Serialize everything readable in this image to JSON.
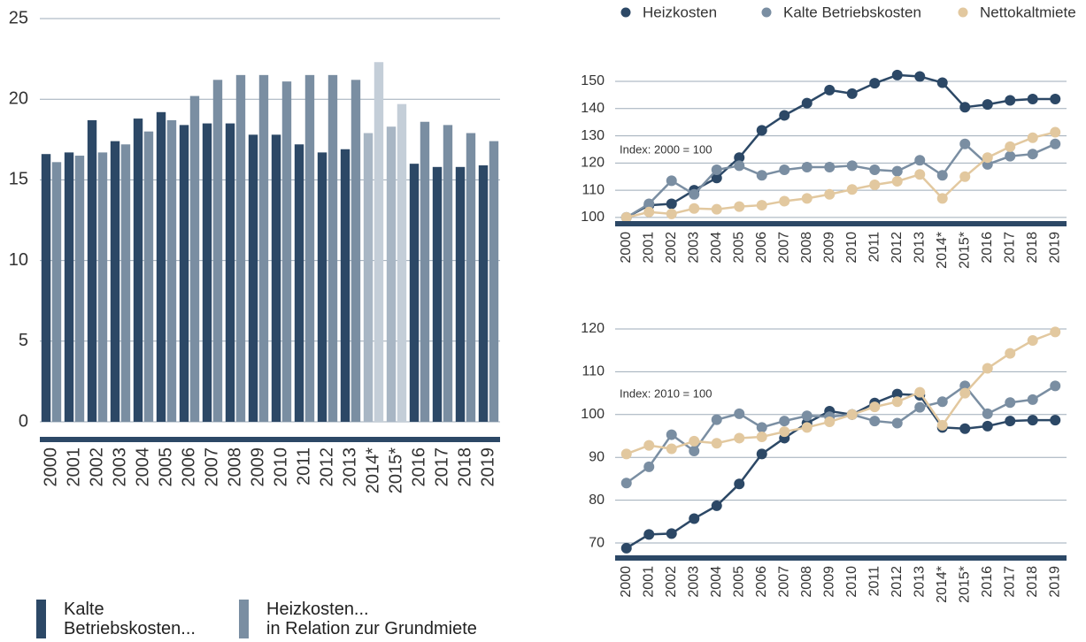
{
  "chart_data": [
    {
      "type": "bar",
      "categories": [
        "2000",
        "2001",
        "2002",
        "2003",
        "2004",
        "2005",
        "2006",
        "2007",
        "2008",
        "2009",
        "2010",
        "2011",
        "2012",
        "2013",
        "2014*",
        "2015*",
        "2016",
        "2017",
        "2018",
        "2019"
      ],
      "series": [
        {
          "name": "Kalte\nBetriebskosten...",
          "color": "#2c4866",
          "colors": [
            "#2c4866",
            "#2c4866",
            "#2c4866",
            "#2c4866",
            "#2c4866",
            "#2c4866",
            "#2c4866",
            "#2c4866",
            "#2c4866",
            "#2c4866",
            "#2c4866",
            "#2c4866",
            "#2c4866",
            "#2c4866",
            "#a8b6c4",
            "#a8b6c4",
            "#2c4866",
            "#2c4866",
            "#2c4866",
            "#2c4866"
          ],
          "values": [
            16.6,
            16.7,
            18.7,
            17.4,
            18.8,
            19.2,
            18.4,
            18.5,
            18.5,
            17.8,
            17.8,
            17.2,
            16.7,
            16.9,
            17.9,
            18.3,
            16.0,
            15.8,
            15.8,
            15.9
          ]
        },
        {
          "name": "Heizkosten...\nin Relation zur Grundmiete",
          "color": "#7a8ea2",
          "colors": [
            "#7a8ea2",
            "#7a8ea2",
            "#7a8ea2",
            "#7a8ea2",
            "#7a8ea2",
            "#7a8ea2",
            "#7a8ea2",
            "#7a8ea2",
            "#7a8ea2",
            "#7a8ea2",
            "#7a8ea2",
            "#7a8ea2",
            "#7a8ea2",
            "#7a8ea2",
            "#c4ced8",
            "#c4ced8",
            "#7a8ea2",
            "#7a8ea2",
            "#7a8ea2",
            "#7a8ea2"
          ],
          "values": [
            16.1,
            16.5,
            16.7,
            17.2,
            18.0,
            18.7,
            20.2,
            21.2,
            21.5,
            21.5,
            21.1,
            21.5,
            21.5,
            21.2,
            22.3,
            19.7,
            18.6,
            18.4,
            17.9,
            17.4
          ]
        }
      ],
      "ylim": [
        0,
        25
      ],
      "yticks": [
        0,
        5,
        10,
        15,
        20,
        25
      ],
      "grid": true
    },
    {
      "type": "line",
      "annotation": "Index: 2000 = 100",
      "categories": [
        "2000",
        "2001",
        "2002",
        "2003",
        "2004",
        "2005",
        "2006",
        "2007",
        "2008",
        "2009",
        "2010",
        "2011",
        "2012",
        "2013",
        "2014*",
        "2015*",
        "2016",
        "2017",
        "2018",
        "2019"
      ],
      "series": [
        {
          "name": "Heizkosten",
          "color": "#2c4866",
          "values": [
            100,
            104.5,
            105,
            110,
            114.5,
            122,
            132,
            137.5,
            142,
            146.8,
            145.5,
            149.3,
            152.3,
            151.8,
            149.5,
            140.5,
            141.5,
            143,
            143.5,
            143.5
          ]
        },
        {
          "name": "Kalte Betriebskosten",
          "color": "#7a8ea2",
          "values": [
            100,
            105,
            113.5,
            108.5,
            117.5,
            119,
            115.5,
            117.5,
            118.5,
            118.5,
            119,
            117.5,
            117,
            121,
            115.5,
            127,
            119.5,
            122.5,
            123.3,
            127
          ]
        },
        {
          "name": "Nettokaltmiete",
          "color": "#e2c89f",
          "values": [
            100,
            102,
            101.3,
            103.3,
            103,
            104,
            104.5,
            106,
            107,
            108.5,
            110.3,
            112,
            113.3,
            115.8,
            107,
            115,
            122,
            126,
            129.3,
            131.3
          ]
        }
      ],
      "ylim": [
        97.7,
        155
      ],
      "yticks": [
        100,
        110,
        120,
        130,
        140,
        150
      ],
      "grid": true
    },
    {
      "type": "line",
      "annotation": "Index: 2010 = 100",
      "categories": [
        "2000",
        "2001",
        "2002",
        "2003",
        "2004",
        "2005",
        "2006",
        "2007",
        "2008",
        "2009",
        "2010",
        "2011",
        "2012",
        "2013",
        "2014*",
        "2015*",
        "2016",
        "2017",
        "2018",
        "2019"
      ],
      "series": [
        {
          "color": "#2c4866",
          "values": [
            68.8,
            72,
            72.2,
            75.7,
            78.7,
            83.8,
            90.8,
            94.5,
            98,
            100.8,
            100,
            102.7,
            104.8,
            104.5,
            97,
            96.7,
            97.3,
            98.5,
            98.7,
            98.7
          ]
        },
        {
          "color": "#7a8ea2",
          "values": [
            84,
            87.8,
            95.3,
            91.5,
            98.8,
            100.2,
            97,
            98.5,
            99.7,
            99.5,
            100,
            98.5,
            98,
            101.7,
            103,
            106.7,
            100.2,
            102.8,
            103.5,
            106.7
          ]
        },
        {
          "color": "#e2c89f",
          "values": [
            90.8,
            92.8,
            92,
            93.8,
            93.3,
            94.5,
            94.8,
            96,
            97,
            98.3,
            100,
            101.8,
            103,
            105.2,
            97.5,
            105,
            110.8,
            114.3,
            117.3,
            119.3
          ]
        }
      ],
      "ylim": [
        66.5,
        122
      ],
      "yticks": [
        70,
        80,
        90,
        100,
        110,
        120
      ],
      "grid": true
    }
  ]
}
